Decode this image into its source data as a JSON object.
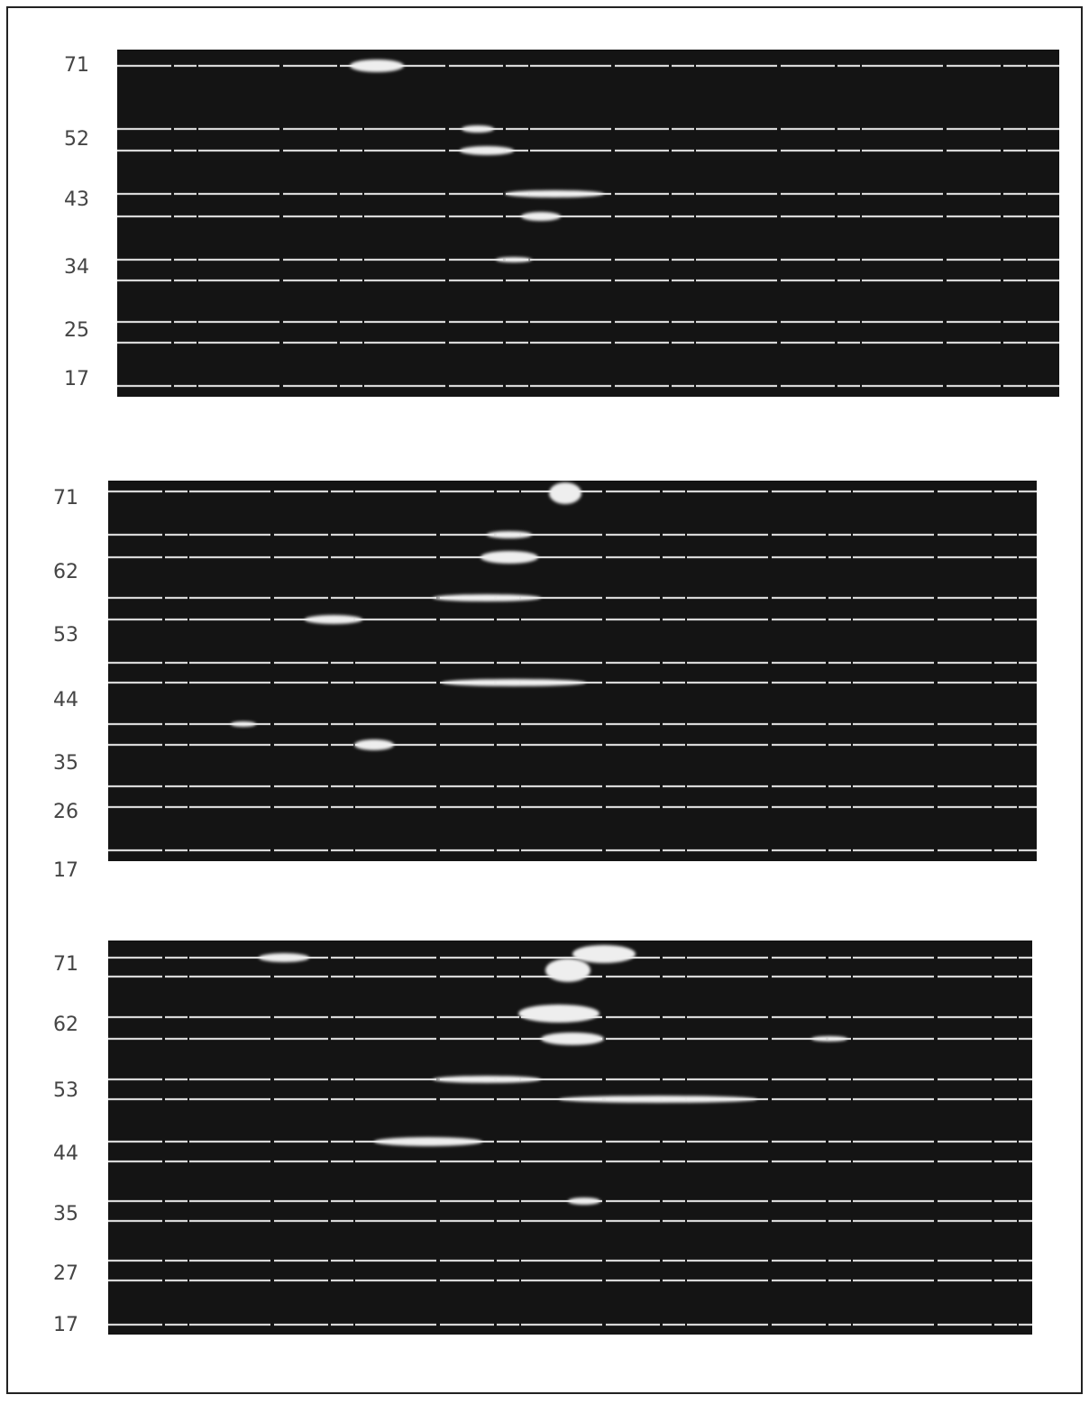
{
  "panels": [
    {
      "labels": [
        "71",
        "52",
        "43",
        "34",
        "25",
        "17"
      ]
    },
    {
      "labels": [
        "71",
        "62",
        "53",
        "44",
        "35",
        "26",
        "17"
      ]
    },
    {
      "labels": [
        "71",
        "62",
        "53",
        "44",
        "35",
        "27",
        "17"
      ]
    }
  ]
}
